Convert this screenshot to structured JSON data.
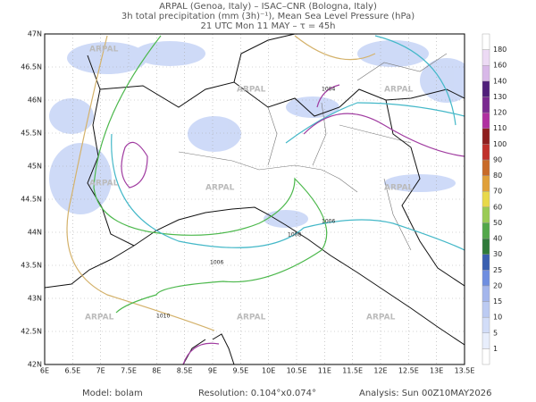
{
  "header": {
    "line1": "ARPAL (Genoa, Italy)  –  ISAC–CNR (Bologna, Italy)",
    "line2": "3h total precipitation (mm (3h)⁻¹), Mean Sea Level Pressure (hPa)",
    "line3": "21 UTC Mon 11 MAY  –  τ = 45h"
  },
  "map": {
    "lon_labels": [
      "6E",
      "6.5E",
      "7E",
      "7.5E",
      "8E",
      "8.5E",
      "9E",
      "9.5E",
      "10E",
      "10.5E",
      "11E",
      "11.5E",
      "12E",
      "12.5E",
      "13E",
      "13.5E"
    ],
    "lat_labels": [
      "42N",
      "42.5N",
      "43N",
      "43.5N",
      "44N",
      "44.5N",
      "45N",
      "45.5N",
      "46N",
      "46.5N",
      "47N"
    ],
    "contour_labels": [
      "1004",
      "1006",
      "1008",
      "1010"
    ],
    "watermark": "ARPAL"
  },
  "colorbar": {
    "labels": [
      1,
      5,
      10,
      15,
      20,
      25,
      30,
      40,
      50,
      60,
      70,
      80,
      90,
      100,
      110,
      120,
      130,
      140,
      160,
      180
    ]
  },
  "footer": {
    "model": "Model: bolam",
    "resolution": "Resolution: 0.104°x0.074°",
    "analysis": "Analysis: Sun 00Z10MAY2026"
  }
}
